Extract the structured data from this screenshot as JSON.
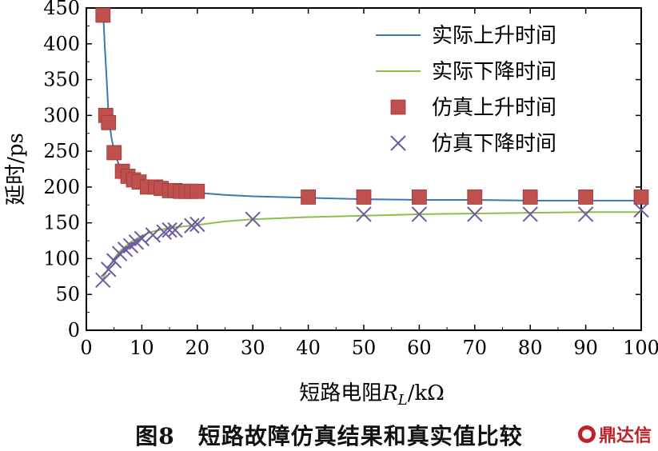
{
  "chart_data": {
    "type": "line",
    "title": "",
    "xlabel": "短路电阻",
    "xlabel_symbol": "R",
    "xlabel_subscript": "L",
    "xlabel_unit": "/kΩ",
    "ylabel": "延时/ps",
    "xlim": [
      0,
      100
    ],
    "ylim": [
      0,
      450
    ],
    "x_ticks": [
      0,
      10,
      20,
      30,
      40,
      50,
      60,
      70,
      80,
      90,
      100
    ],
    "y_ticks": [
      0,
      50,
      100,
      150,
      200,
      250,
      300,
      350,
      400,
      450
    ],
    "grid": false,
    "legend_position": "top-right",
    "series": [
      {
        "name": "实际上升时间",
        "kind": "line",
        "color": "#3a78b8",
        "x": [
          3,
          3.3,
          3.7,
          4,
          4.5,
          5,
          6,
          7,
          8,
          9,
          10,
          12,
          15,
          20,
          25,
          30,
          40,
          50,
          60,
          70,
          80,
          90,
          100
        ],
        "y": [
          450,
          400,
          345,
          300,
          270,
          250,
          228,
          215,
          208,
          204,
          200,
          197,
          194,
          192,
          189,
          187,
          185,
          183,
          182,
          182,
          181,
          181,
          181
        ]
      },
      {
        "name": "实际下降时间",
        "kind": "line",
        "color": "#8cbf4a",
        "x": [
          3,
          4,
          5,
          6,
          7,
          8,
          10,
          12,
          15,
          20,
          25,
          30,
          40,
          50,
          60,
          70,
          80,
          90,
          100
        ],
        "y": [
          72,
          88,
          100,
          110,
          117,
          123,
          132,
          138,
          143,
          147,
          152,
          155,
          158,
          160,
          162,
          163,
          164,
          165,
          165
        ]
      },
      {
        "name": "仿真上升时间",
        "kind": "square",
        "color": "#c0504d",
        "x": [
          3,
          3.5,
          4,
          5,
          6.5,
          7.5,
          8.5,
          9.5,
          11,
          12.5,
          13.5,
          15,
          16,
          17,
          18,
          19,
          20,
          40,
          50,
          60,
          70,
          80,
          90,
          100
        ],
        "y": [
          440,
          300,
          290,
          248,
          222,
          215,
          210,
          207,
          200,
          200,
          198,
          195,
          195,
          194,
          194,
          194,
          194,
          186,
          186,
          186,
          186,
          186,
          186,
          186
        ]
      },
      {
        "name": "仿真下降时间",
        "kind": "cross",
        "color": "#6e5a9e",
        "x": [
          3,
          4,
          5,
          6,
          7,
          8,
          9,
          10,
          12,
          14,
          15,
          16,
          19,
          20,
          30,
          50,
          60,
          70,
          80,
          90,
          100
        ],
        "y": [
          70,
          85,
          97,
          107,
          113,
          118,
          123,
          128,
          133,
          137,
          140,
          140,
          146,
          148,
          155,
          162,
          162,
          162,
          162,
          162,
          168
        ]
      }
    ]
  },
  "caption": "图8　短路故障仿真结果和真实值比较",
  "brand": "鼎达信"
}
